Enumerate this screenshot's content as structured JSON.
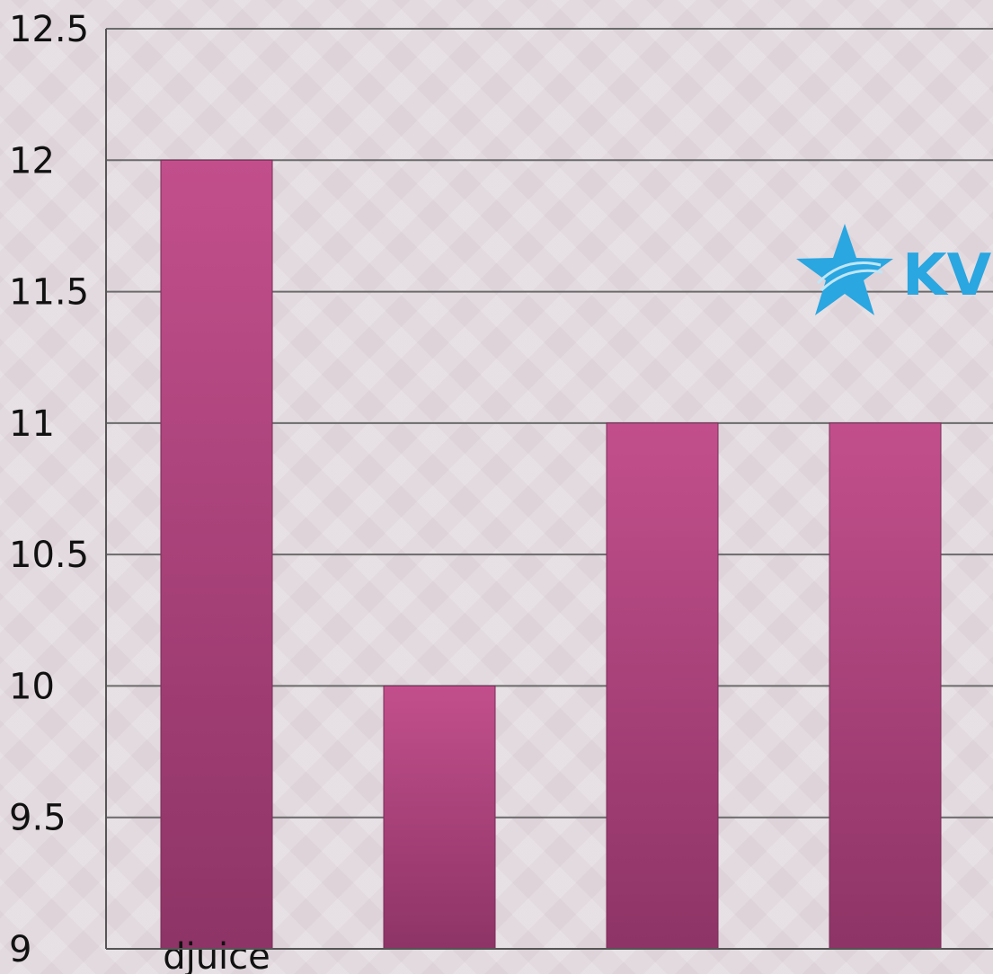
{
  "chart_data": {
    "type": "bar",
    "categories": [
      "djuice",
      "",
      "",
      ""
    ],
    "values": [
      12,
      10,
      11,
      11
    ],
    "ylim": [
      9,
      12.5
    ],
    "yticks": [
      "9",
      "9.5",
      "10",
      "10.5",
      "11",
      "11.5",
      "12",
      "12.5"
    ],
    "grid": true,
    "bar_color": "#a83f7e",
    "bar_color_top": "#c24f8c",
    "bar_color_bottom": "#8e3466",
    "title": "",
    "xlabel": "",
    "ylabel": ""
  },
  "logo": {
    "text": "KV",
    "color": "#2aa6e0",
    "icon": "star-icon"
  }
}
